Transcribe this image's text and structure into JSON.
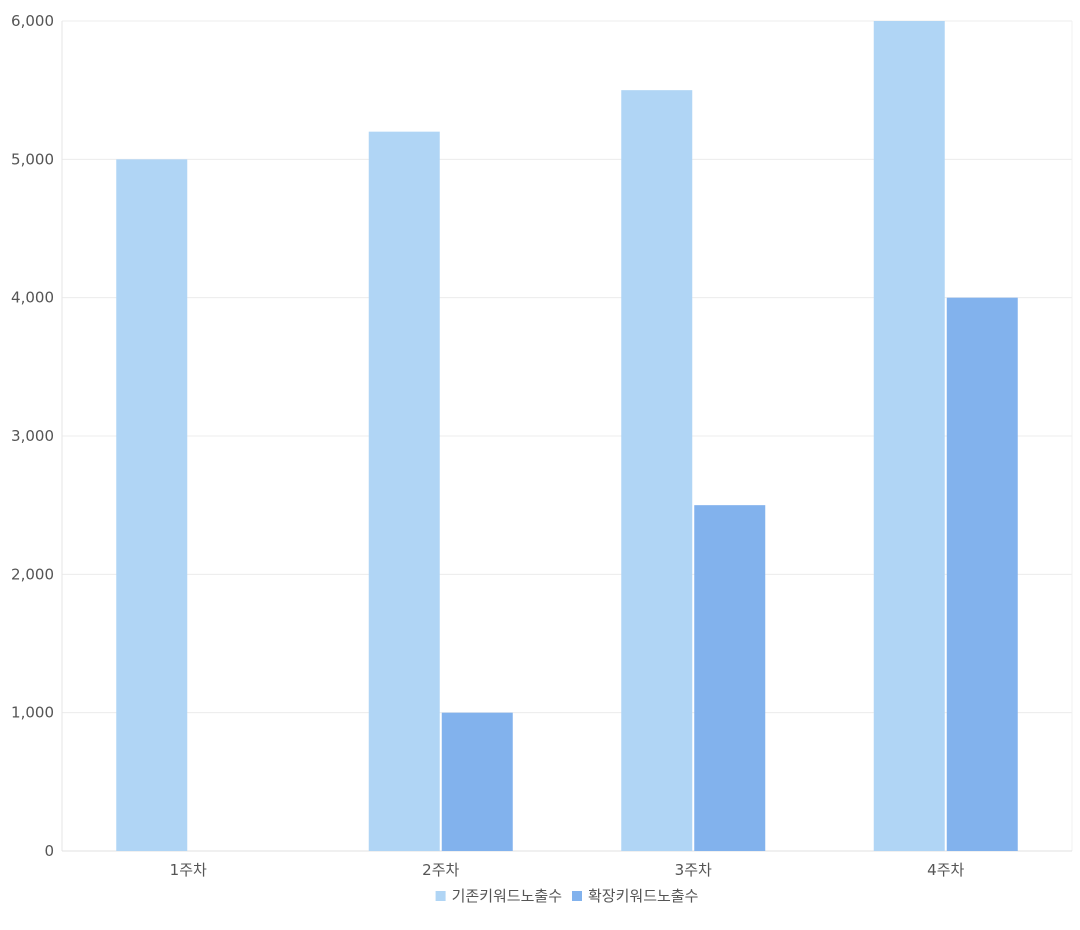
{
  "chart_data": {
    "type": "bar",
    "categories": [
      "1주차",
      "2주차",
      "3주차",
      "4주차"
    ],
    "series": [
      {
        "name": "기존키워드노출수",
        "color": "#b0d5f5",
        "values": [
          5000,
          5200,
          5500,
          6000
        ]
      },
      {
        "name": "확장키워드노출수",
        "color": "#82b2ed",
        "values": [
          0,
          1000,
          2500,
          4000
        ]
      }
    ],
    "ylim": [
      0,
      6000
    ],
    "yticks": [
      "0",
      "1,000",
      "2,000",
      "3,000",
      "4,000",
      "5,000",
      "6,000"
    ],
    "grid": true,
    "legend_position": "bottom-center"
  }
}
